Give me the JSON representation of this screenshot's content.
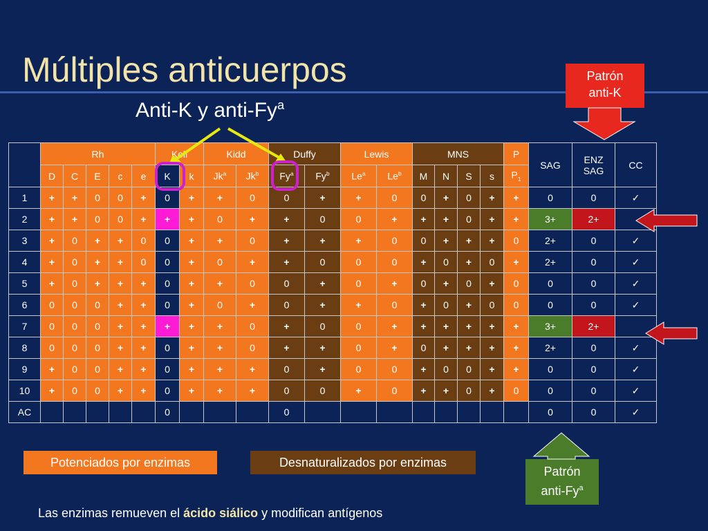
{
  "title": "Múltiples anticuerpos",
  "subtitle": "Anti-K y anti-Fy",
  "subtitle_sup": "a",
  "callout_k": [
    "Patrón",
    "anti-K"
  ],
  "callout_fya": [
    "Patrón",
    "anti-Fy",
    "a"
  ],
  "legend_enhanced": "Potenciados por enzimas",
  "legend_denatured": "Desnaturalizados por enzimas",
  "footer_before": "Las enzimas remueven el ",
  "footer_highlight": "ácido siálico",
  "footer_after": " y modifican antígenos",
  "groups": {
    "rh": "Rh",
    "kell": "Kell",
    "kidd": "Kidd",
    "duffy": "Duffy",
    "lewis": "Lewis",
    "mns": "MNS",
    "p": "P",
    "sag": "SAG",
    "enz": [
      "ENZ",
      "SAG"
    ],
    "cc": "CC"
  },
  "antigens": [
    "D",
    "C",
    "E",
    "c",
    "e",
    "K",
    "k",
    "Jk",
    "Jk",
    "Fy",
    "Fy",
    "Le",
    "Le",
    "M",
    "N",
    "S",
    "s",
    "P"
  ],
  "antigen_sups": [
    "",
    "",
    "",
    "",
    "",
    "",
    "",
    "a",
    "b",
    "a",
    "b",
    "a",
    "b",
    "",
    "",
    "",
    "",
    ""
  ],
  "antigen_subs": [
    "",
    "",
    "",
    "",
    "",
    "",
    "",
    "",
    "",
    "",
    "",
    "",
    "",
    "",
    "",
    "",
    "",
    "1"
  ],
  "rows": [
    {
      "id": "1",
      "v": [
        "+",
        "+",
        "0",
        "0",
        "+",
        "0",
        "+",
        "+",
        "0",
        "0",
        "+",
        "+",
        "0",
        "0",
        "+",
        "0",
        "+",
        "+"
      ],
      "sag": "0",
      "enz": "0",
      "cc": "✓"
    },
    {
      "id": "2",
      "v": [
        "+",
        "+",
        "0",
        "0",
        "+",
        "+",
        "+",
        "0",
        "+",
        "+",
        "0",
        "0",
        "+",
        "+",
        "+",
        "0",
        "+",
        "+"
      ],
      "sag": "3+",
      "enz": "2+",
      "cc": ""
    },
    {
      "id": "3",
      "v": [
        "+",
        "0",
        "+",
        "+",
        "0",
        "0",
        "+",
        "+",
        "0",
        "+",
        "+",
        "+",
        "0",
        "0",
        "+",
        "+",
        "+",
        "0"
      ],
      "sag": "2+",
      "enz": "0",
      "cc": "✓"
    },
    {
      "id": "4",
      "v": [
        "+",
        "0",
        "+",
        "+",
        "0",
        "0",
        "+",
        "0",
        "+",
        "+",
        "0",
        "0",
        "0",
        "+",
        "0",
        "+",
        "0",
        "+"
      ],
      "sag": "2+",
      "enz": "0",
      "cc": "✓"
    },
    {
      "id": "5",
      "v": [
        "+",
        "0",
        "+",
        "+",
        "+",
        "0",
        "+",
        "+",
        "0",
        "0",
        "+",
        "0",
        "+",
        "0",
        "+",
        "0",
        "+",
        "0"
      ],
      "sag": "0",
      "enz": "0",
      "cc": "✓"
    },
    {
      "id": "6",
      "v": [
        "0",
        "0",
        "0",
        "+",
        "+",
        "0",
        "+",
        "0",
        "+",
        "0",
        "+",
        "+",
        "0",
        "+",
        "0",
        "+",
        "0",
        "0"
      ],
      "sag": "0",
      "enz": "0",
      "cc": "✓"
    },
    {
      "id": "7",
      "v": [
        "0",
        "0",
        "0",
        "+",
        "+",
        "+",
        "+",
        "+",
        "0",
        "+",
        "0",
        "0",
        "+",
        "+",
        "+",
        "+",
        "+",
        "+"
      ],
      "sag": "3+",
      "enz": "2+",
      "cc": ""
    },
    {
      "id": "8",
      "v": [
        "0",
        "0",
        "0",
        "+",
        "+",
        "0",
        "+",
        "+",
        "0",
        "+",
        "+",
        "0",
        "+",
        "0",
        "+",
        "+",
        "+",
        "+"
      ],
      "sag": "2+",
      "enz": "0",
      "cc": "✓"
    },
    {
      "id": "9",
      "v": [
        "+",
        "0",
        "0",
        "+",
        "+",
        "0",
        "+",
        "+",
        "+",
        "0",
        "+",
        "0",
        "0",
        "+",
        "0",
        "0",
        "+",
        "+"
      ],
      "sag": "0",
      "enz": "0",
      "cc": "✓"
    },
    {
      "id": "10",
      "v": [
        "+",
        "0",
        "0",
        "+",
        "+",
        "0",
        "+",
        "+",
        "+",
        "0",
        "0",
        "+",
        "0",
        "+",
        "+",
        "0",
        "+",
        "0"
      ],
      "sag": "0",
      "enz": "0",
      "cc": "✓"
    },
    {
      "id": "AC",
      "v": [
        "",
        "",
        "",
        "",
        "",
        "0",
        "",
        "",
        "",
        "0",
        "",
        "",
        "",
        "",
        "",
        "",
        "",
        ""
      ],
      "sag": "0",
      "enz": "0",
      "cc": "✓"
    }
  ],
  "colors": {
    "background": "#0c2358",
    "title": "#f2e4a8",
    "enhanced": "#f2771e",
    "denatured": "#6b3d12",
    "positive_sag": "#4a7c2a",
    "positive_enz": "#c2151c",
    "k_positive": "#ff1ad6",
    "callout_k": "#e8281e",
    "arrow_yellow": "#e8e810",
    "marker_circle": "#cc22cc"
  }
}
